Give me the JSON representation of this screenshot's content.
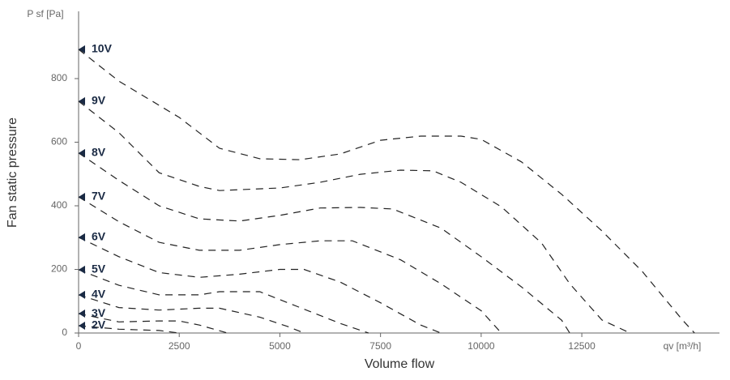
{
  "chart_data": {
    "type": "line",
    "y_axis_unit": "P sf [Pa]",
    "x_axis_unit": "qv [m³/h]",
    "ylabel": "Fan static pressure",
    "xlabel": "Volume flow",
    "xlim": [
      0,
      16000
    ],
    "ylim": [
      0,
      1000
    ],
    "xticks": [
      0,
      2500,
      5000,
      7500,
      10000,
      12500
    ],
    "yticks": [
      0,
      200,
      400,
      600,
      800
    ],
    "color": "#222222",
    "marker_color": "#1a2a44",
    "series": [
      {
        "name": "10V",
        "x": [
          0,
          1000,
          2500,
          3500,
          4500,
          5500,
          6500,
          7500,
          8500,
          9500,
          10000,
          11000,
          12000,
          13000,
          14000,
          15000,
          15300
        ],
        "values": [
          892,
          792,
          678,
          581,
          548,
          545,
          563,
          606,
          619,
          619,
          609,
          538,
          436,
          321,
          194,
          41,
          0
        ]
      },
      {
        "name": "9V",
        "x": [
          0,
          1000,
          2000,
          3000,
          3500,
          5000,
          6000,
          7000,
          8000,
          8800,
          9500,
          10500,
          11500,
          12200,
          13000,
          13700
        ],
        "values": [
          729,
          630,
          504,
          461,
          448,
          456,
          474,
          499,
          512,
          510,
          474,
          397,
          283,
          155,
          41,
          0
        ]
      },
      {
        "name": "8V",
        "x": [
          0,
          1000,
          2000,
          3000,
          4000,
          5000,
          6000,
          7000,
          7800,
          9000,
          10000,
          11000,
          12000,
          12200
        ],
        "values": [
          566,
          480,
          400,
          359,
          352,
          370,
          393,
          395,
          390,
          330,
          240,
          145,
          40,
          0
        ]
      },
      {
        "name": "7V",
        "x": [
          0,
          1000,
          2000,
          3000,
          4000,
          5000,
          6000,
          6800,
          8000,
          9000,
          10000,
          10500
        ],
        "values": [
          428,
          350,
          285,
          260,
          260,
          278,
          290,
          290,
          230,
          155,
          70,
          0
        ]
      },
      {
        "name": "6V",
        "x": [
          0,
          1000,
          2000,
          3000,
          4000,
          5000,
          5600,
          6500,
          7500,
          8500,
          9000
        ],
        "values": [
          301,
          240,
          190,
          175,
          185,
          200,
          200,
          160,
          95,
          25,
          0
        ]
      },
      {
        "name": "5V",
        "x": [
          0,
          1000,
          2000,
          3000,
          3500,
          4500,
          5500,
          6500,
          7200
        ],
        "values": [
          199,
          150,
          120,
          120,
          130,
          130,
          80,
          30,
          0
        ]
      },
      {
        "name": "4V",
        "x": [
          0,
          1000,
          2000,
          3000,
          3500,
          4500,
          5200,
          5600
        ],
        "values": [
          120,
          80,
          72,
          78,
          78,
          50,
          20,
          0
        ]
      },
      {
        "name": "3V",
        "x": [
          0,
          1000,
          2000,
          2500,
          3000,
          3700
        ],
        "values": [
          61,
          35,
          38,
          38,
          25,
          0
        ]
      },
      {
        "name": "2V",
        "x": [
          0,
          1000,
          2000,
          2500
        ],
        "values": [
          23,
          12,
          8,
          0
        ]
      }
    ]
  }
}
